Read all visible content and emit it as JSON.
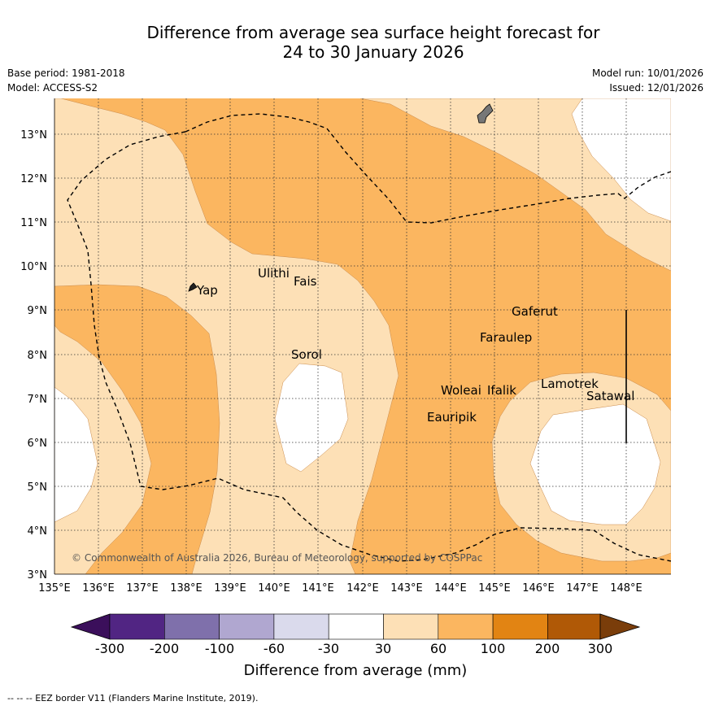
{
  "title_line1": "Difference from average sea surface height forecast for",
  "title_line2": "24 to 30 January 2026",
  "base_period": "Base period: 1981-2018",
  "model": "Model: ACCESS-S2",
  "model_run": "Model run: 10/01/2026",
  "issued": "Issued: 12/01/2026",
  "copyright": "© Commonwealth of Australia 2026, Bureau of Meteorology, supported by COSPPac",
  "footer_note": "--  --  -- EEZ border V11 (Flanders Marine Institute, 2019).",
  "colorbar": {
    "title": "Difference from average (mm)",
    "ticks": [
      "-300",
      "-200",
      "-100",
      "-60",
      "-30",
      "30",
      "60",
      "100",
      "200",
      "300"
    ],
    "colors": [
      "#3b0f5b",
      "#512583",
      "#7f70ab",
      "#b0a7d0",
      "#dadaec",
      "#ffffff",
      "#fde0b6",
      "#fbb660",
      "#e28413",
      "#b05906",
      "#7a3d0a"
    ]
  },
  "axes": {
    "x_ticks": [
      "135°E",
      "136°E",
      "137°E",
      "138°E",
      "139°E",
      "140°E",
      "141°E",
      "142°E",
      "143°E",
      "144°E",
      "145°E",
      "146°E",
      "147°E",
      "148°E"
    ],
    "y_ticks": [
      "3°N",
      "4°N",
      "5°N",
      "6°N",
      "7°N",
      "8°N",
      "9°N",
      "10°N",
      "11°N",
      "12°N",
      "13°N"
    ]
  },
  "places": [
    {
      "name": "Yap",
      "lon": 138.1,
      "lat": 9.5
    },
    {
      "name": "Ulithi",
      "lon": 139.7,
      "lat": 9.9
    },
    {
      "name": "Fais",
      "lon": 140.5,
      "lat": 9.7
    },
    {
      "name": "Sorol",
      "lon": 140.4,
      "lat": 8.1
    },
    {
      "name": "Gaferut",
      "lon": 145.4,
      "lat": 9.1
    },
    {
      "name": "Faraulep",
      "lon": 144.6,
      "lat": 8.5
    },
    {
      "name": "Lamotrek",
      "lon": 146.1,
      "lat": 7.4
    },
    {
      "name": "Satawal",
      "lon": 147.1,
      "lat": 7.1
    },
    {
      "name": "Woleai",
      "lon": 143.6,
      "lat": 7.3
    },
    {
      "name": "Ifalik",
      "lon": 144.5,
      "lat": 7.3
    },
    {
      "name": "Eauripik",
      "lon": 143.3,
      "lat": 6.6
    }
  ]
}
